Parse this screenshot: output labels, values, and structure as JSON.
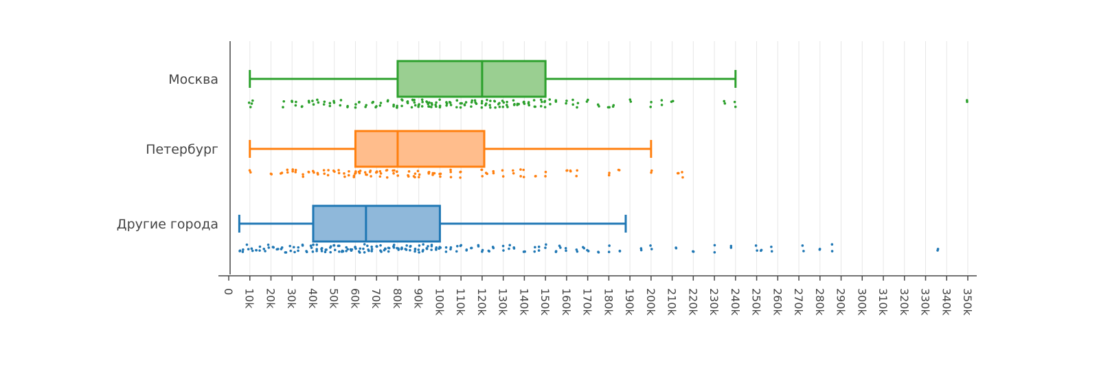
{
  "chart_data": {
    "type": "box",
    "orientation": "horizontal",
    "title": "",
    "xlabel": "",
    "ylabel": "",
    "xlim": [
      -5000,
      355000
    ],
    "xticks": [
      {
        "value": 0,
        "label": "0"
      },
      {
        "value": 10000,
        "label": "10k"
      },
      {
        "value": 20000,
        "label": "20k"
      },
      {
        "value": 30000,
        "label": "30k"
      },
      {
        "value": 40000,
        "label": "40k"
      },
      {
        "value": 50000,
        "label": "50k"
      },
      {
        "value": 60000,
        "label": "60k"
      },
      {
        "value": 70000,
        "label": "70k"
      },
      {
        "value": 80000,
        "label": "80k"
      },
      {
        "value": 90000,
        "label": "90k"
      },
      {
        "value": 100000,
        "label": "100k"
      },
      {
        "value": 110000,
        "label": "110k"
      },
      {
        "value": 120000,
        "label": "120k"
      },
      {
        "value": 130000,
        "label": "130k"
      },
      {
        "value": 140000,
        "label": "140k"
      },
      {
        "value": 150000,
        "label": "150k"
      },
      {
        "value": 160000,
        "label": "160k"
      },
      {
        "value": 170000,
        "label": "170k"
      },
      {
        "value": 180000,
        "label": "180k"
      },
      {
        "value": 190000,
        "label": "190k"
      },
      {
        "value": 200000,
        "label": "200k"
      },
      {
        "value": 210000,
        "label": "210k"
      },
      {
        "value": 220000,
        "label": "220k"
      },
      {
        "value": 230000,
        "label": "230k"
      },
      {
        "value": 240000,
        "label": "240k"
      },
      {
        "value": 250000,
        "label": "250k"
      },
      {
        "value": 260000,
        "label": "260k"
      },
      {
        "value": 270000,
        "label": "270k"
      },
      {
        "value": 280000,
        "label": "280k"
      },
      {
        "value": 290000,
        "label": "290k"
      },
      {
        "value": 300000,
        "label": "300k"
      },
      {
        "value": 310000,
        "label": "310k"
      },
      {
        "value": 320000,
        "label": "320k"
      },
      {
        "value": 330000,
        "label": "330k"
      },
      {
        "value": 340000,
        "label": "340k"
      },
      {
        "value": 350000,
        "label": "350k"
      }
    ],
    "grid": true,
    "legend": "none",
    "series": [
      {
        "category": "Москва",
        "color": "#2ca02c",
        "fill": "#9acf91",
        "whisker_low": 10000,
        "q1": 80000,
        "median": 120000,
        "q3": 150000,
        "whisker_high": 240000,
        "points": [
          10000,
          11000,
          26000,
          30000,
          32000,
          35000,
          38000,
          40000,
          42000,
          45000,
          48000,
          50000,
          53000,
          56000,
          60000,
          62000,
          65000,
          68000,
          70000,
          72000,
          75000,
          78000,
          80000,
          82000,
          85000,
          87000,
          88000,
          90000,
          92000,
          94000,
          95000,
          96000,
          98000,
          100000,
          103000,
          105000,
          108000,
          110000,
          112000,
          115000,
          117000,
          120000,
          122000,
          124000,
          126000,
          128000,
          130000,
          132000,
          135000,
          137000,
          140000,
          142000,
          145000,
          148000,
          150000,
          152000,
          155000,
          160000,
          163000,
          165000,
          170000,
          175000,
          180000,
          182000,
          190000,
          200000,
          205000,
          210000,
          235000,
          240000,
          350000
        ]
      },
      {
        "category": "Петербург",
        "color": "#ff7f0e",
        "fill": "#ffbd8c",
        "whisker_low": 10000,
        "q1": 60000,
        "median": 80000,
        "q3": 121000,
        "whisker_high": 200000,
        "points": [
          10000,
          20000,
          25000,
          28000,
          30000,
          32000,
          35000,
          38000,
          40000,
          42000,
          45000,
          47000,
          50000,
          52000,
          55000,
          57000,
          59000,
          60000,
          62000,
          65000,
          67000,
          70000,
          72000,
          75000,
          78000,
          80000,
          85000,
          88000,
          90000,
          95000,
          97000,
          100000,
          105000,
          110000,
          120000,
          122000,
          125000,
          130000,
          135000,
          138000,
          140000,
          145000,
          150000,
          160000,
          162000,
          165000,
          180000,
          185000,
          200000,
          213000,
          215000
        ]
      },
      {
        "category": "Другие города",
        "color": "#1f77b4",
        "fill": "#8fb8da",
        "whisker_low": 5000,
        "q1": 40000,
        "median": 65000,
        "q3": 100000,
        "whisker_high": 188000,
        "points": [
          5000,
          7000,
          9000,
          11000,
          13000,
          15000,
          17000,
          19000,
          21000,
          23000,
          25000,
          27000,
          29000,
          31000,
          33000,
          35000,
          37000,
          39000,
          40000,
          42000,
          44000,
          46000,
          48000,
          50000,
          52000,
          54000,
          56000,
          58000,
          60000,
          62000,
          64000,
          66000,
          68000,
          70000,
          72000,
          74000,
          76000,
          78000,
          80000,
          82000,
          84000,
          86000,
          88000,
          90000,
          92000,
          94000,
          96000,
          98000,
          100000,
          103000,
          105000,
          108000,
          110000,
          113000,
          115000,
          118000,
          120000,
          123000,
          125000,
          130000,
          133000,
          135000,
          140000,
          145000,
          147000,
          150000,
          155000,
          157000,
          160000,
          165000,
          168000,
          170000,
          175000,
          180000,
          185000,
          195000,
          200000,
          212000,
          220000,
          230000,
          238000,
          250000,
          252000,
          257000,
          272000,
          280000,
          286000,
          336000
        ]
      }
    ]
  }
}
